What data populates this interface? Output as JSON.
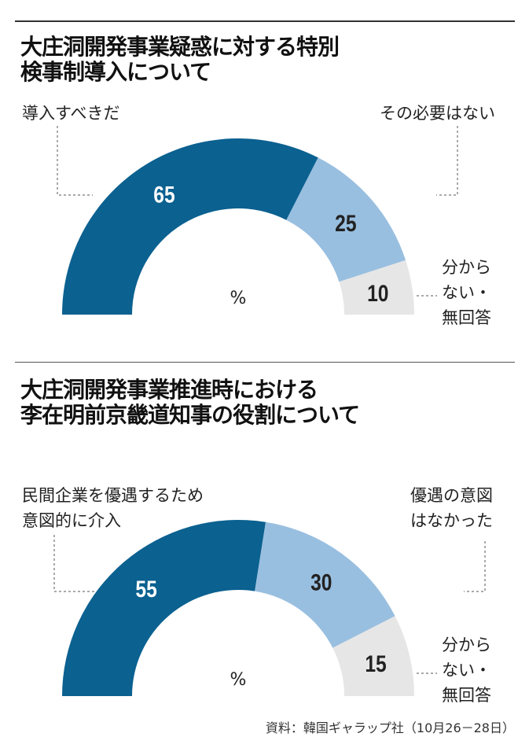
{
  "chart_data": [
    {
      "type": "pie",
      "subtype": "half-donut",
      "title_lines": [
        "大庄洞開発事業疑惑に対する特別",
        "検事制導入について"
      ],
      "unit": "%",
      "categories": [
        "導入すべきだ",
        "その必要はない",
        "分からない・無回答"
      ],
      "label_lines": [
        [
          "導入すべきだ"
        ],
        [
          "その必要はない"
        ],
        [
          "分から",
          "ない・",
          "無回答"
        ]
      ],
      "values": [
        65,
        25,
        10
      ],
      "colors": [
        "#0b6190",
        "#99bfe0",
        "#e6e6e6"
      ]
    },
    {
      "type": "pie",
      "subtype": "half-donut",
      "title_lines": [
        "大庄洞開発事業推進時における",
        "李在明前京畿道知事の役割について"
      ],
      "unit": "%",
      "categories": [
        "民間企業を優遇するため意図的に介入",
        "優遇の意図はなかった",
        "分からない・無回答"
      ],
      "label_lines": [
        [
          "民間企業を優遇するため",
          "意図的に介入"
        ],
        [
          "優遇の意図",
          "はなかった"
        ],
        [
          "分から",
          "ない・",
          "無回答"
        ]
      ],
      "values": [
        55,
        30,
        15
      ],
      "colors": [
        "#0b6190",
        "#99bfe0",
        "#e6e6e6"
      ]
    }
  ],
  "source": "資料：韓国ギャラップ社（10月26－28日）"
}
